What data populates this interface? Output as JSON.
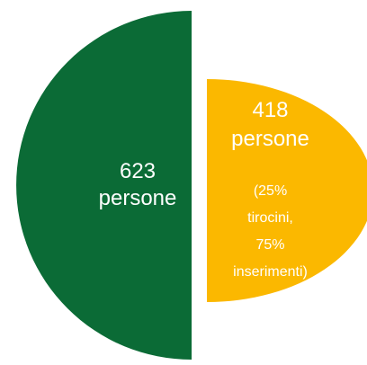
{
  "chart_data": {
    "type": "split-pie",
    "values": [
      623,
      418
    ],
    "value_labels": [
      "623 persone",
      "418 persone"
    ],
    "colors": [
      "#0b6b36",
      "#fbb800"
    ],
    "annotation": "(25% tirocini, 75% inserimenti)"
  }
}
